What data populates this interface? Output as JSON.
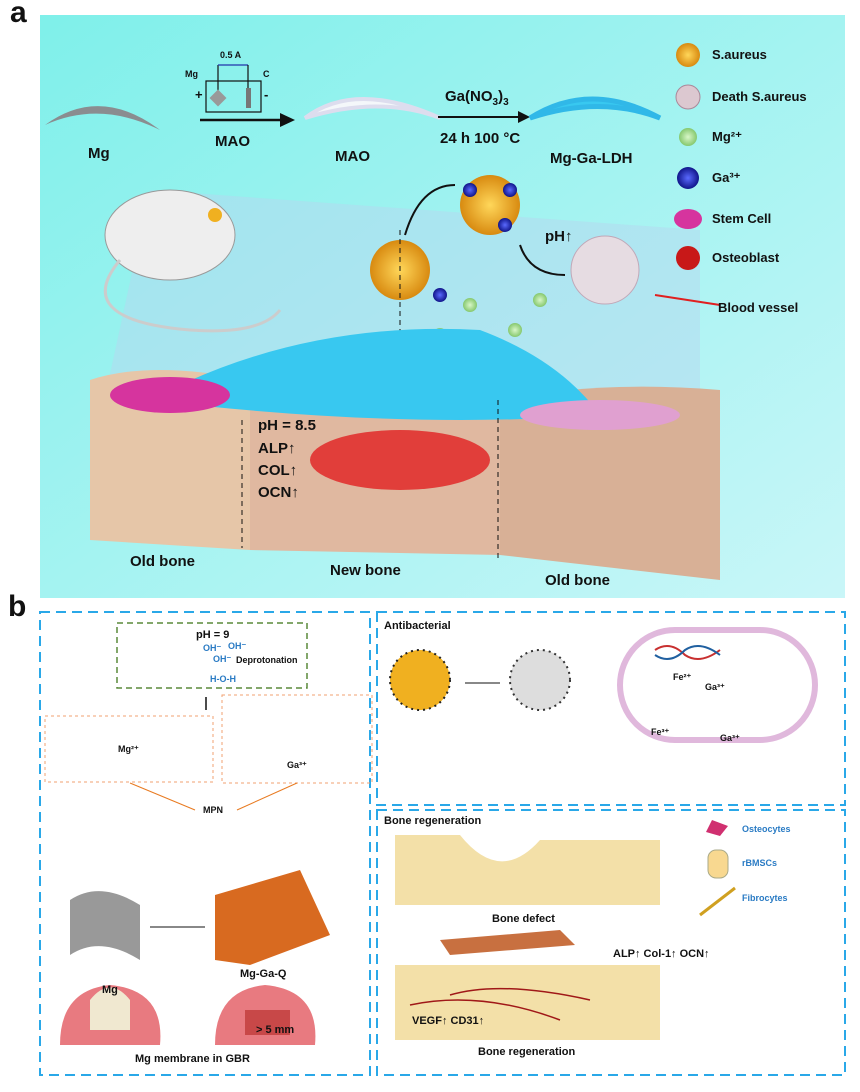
{
  "panel_a": {
    "letter": "a",
    "mg": "Mg",
    "mao_step": "MAO",
    "mao_product": "MAO",
    "reagent": "Ga(NO3)3",
    "reagent_base": "Ga(NO",
    "reagent_sub": "3",
    "reagent_close": ")",
    "reagent_sub2": "3",
    "conditions": "24 h  100 °C",
    "product": "Mg-Ga-LDH",
    "circuit": {
      "current": "0.5 A",
      "anode": "Mg",
      "cathode": "C",
      "plus": "+",
      "minus": "-"
    },
    "legend": [
      {
        "label": "S.aureus",
        "color": "#e8a21a"
      },
      {
        "label": "Death S.aureus",
        "color": "#d9c2cc"
      },
      {
        "label": "Mg²⁺",
        "color": "#9ed88a"
      },
      {
        "label": "Ga³⁺",
        "color": "#1a2bc0"
      },
      {
        "label": "Stem Cell",
        "color": "#d6349e"
      },
      {
        "label": "Osteoblast",
        "color": "#d01818"
      },
      {
        "label": "Blood vessel",
        "color": "#e02020"
      }
    ],
    "ph_up": "pH↑",
    "markers": [
      "pH = 8.5",
      "ALP↑",
      "COL↑",
      "OCN↑"
    ],
    "bone_labels": [
      "Old bone",
      "New bone",
      "Old bone"
    ]
  },
  "panel_b": {
    "letter": "b",
    "left": {
      "ph": "pH = 9",
      "hydroxide": [
        "OH⁻",
        "OH⁻",
        "OH⁻"
      ],
      "water": "H-O-H",
      "deprotonation": "Deprotonation",
      "mg_complex": "Mg²⁺",
      "ga_complex": "Ga³⁺",
      "mpn": "MPN",
      "mg": "Mg",
      "product": "Mg-Ga-Q",
      "distance": "> 5 mm",
      "caption": "Mg membrane in GBR"
    },
    "antibacterial": {
      "title": "Antibacterial",
      "ions": [
        "Fe²⁺",
        "Ga³⁺",
        "Fe³⁺",
        "Ga³⁺"
      ]
    },
    "bone": {
      "title": "Bone regeneration",
      "legend": [
        "Osteocytes",
        "rBMSCs",
        "Fibrocytes"
      ],
      "defect_caption": "Bone defect",
      "markers_top": "ALP↑ Col-1↑ OCN↑",
      "markers_bottom": "VEGF↑ CD31↑",
      "regen_caption": "Bone regeneration"
    },
    "colors": {
      "dashed_border": "#2aa8e8",
      "green_border": "#5a8a3a",
      "orange_border": "#f0a070",
      "accent_orange": "#e87a20"
    }
  }
}
